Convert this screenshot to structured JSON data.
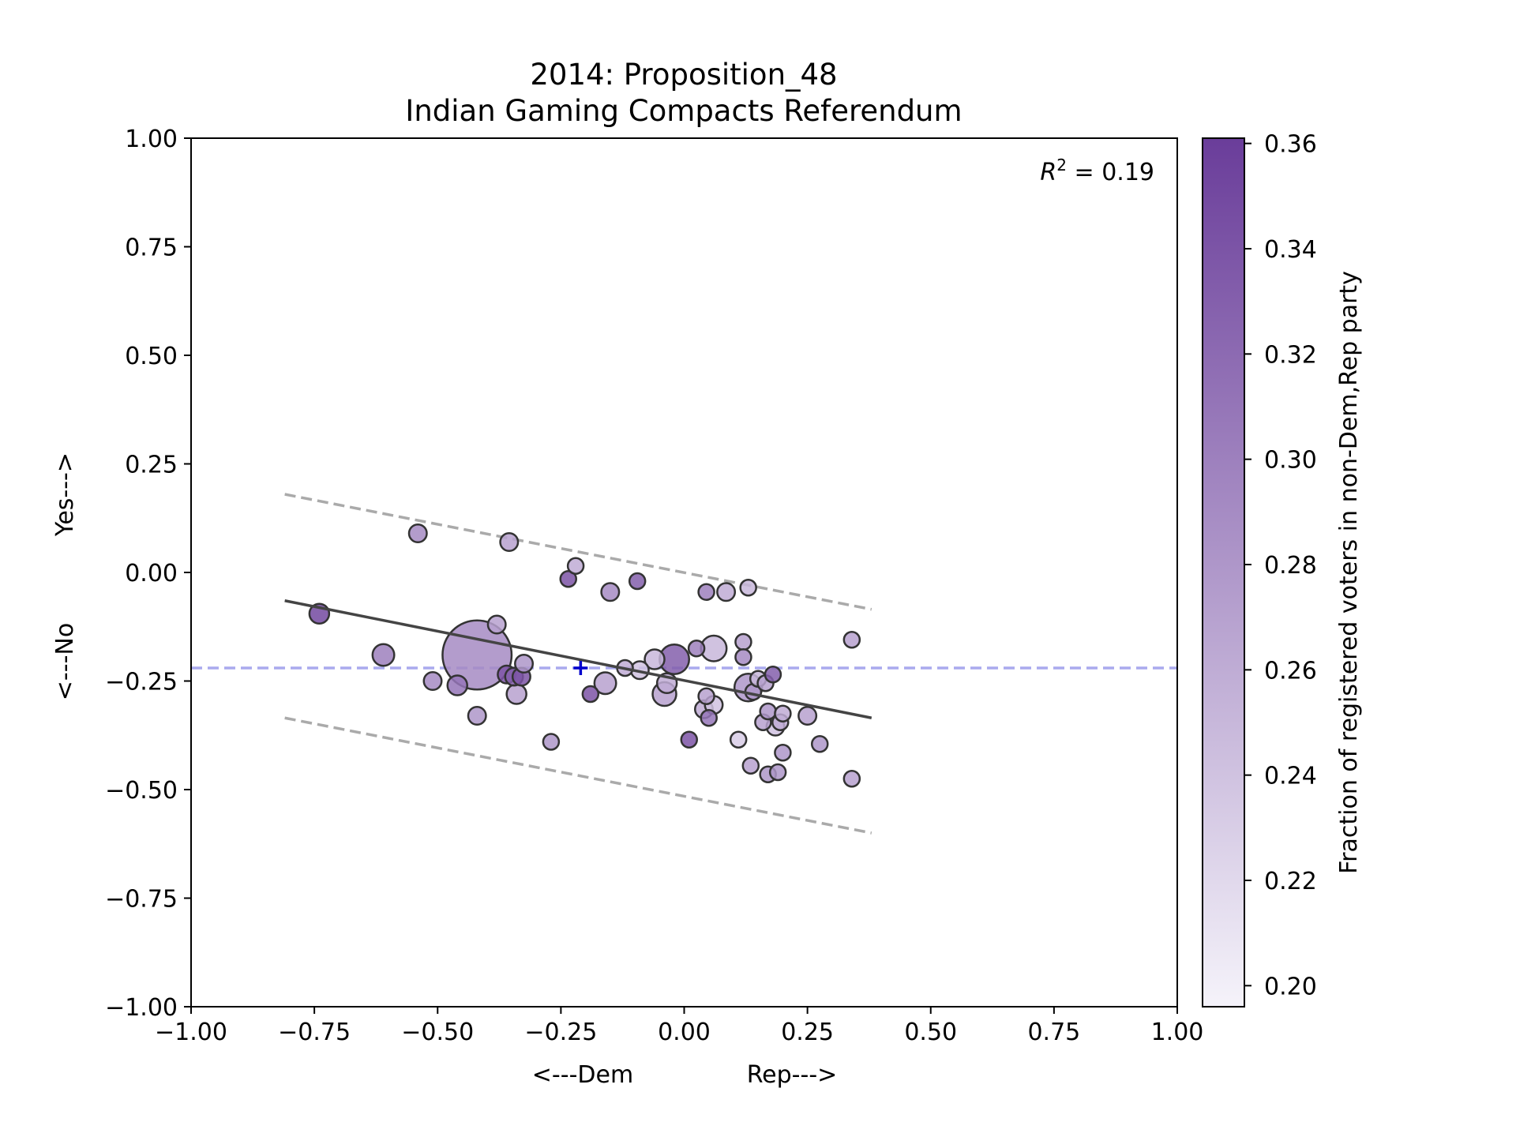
{
  "chart_data": {
    "type": "scatter",
    "title_line1": "2014: Proposition_48",
    "title_line2": "Indian Gaming Compacts Referendum",
    "xlabel_left": "<---Dem",
    "xlabel_right": "Rep--->",
    "ylabel_bottom": "<---No",
    "ylabel_top": "Yes--->",
    "xlim": [
      -1.0,
      1.0
    ],
    "ylim": [
      -1.0,
      1.0
    ],
    "xticks": [
      "−1.00",
      "−0.75",
      "−0.50",
      "−0.25",
      "0.00",
      "0.25",
      "0.50",
      "0.75",
      "1.00"
    ],
    "yticks": [
      "−1.00",
      "−0.75",
      "−0.50",
      "−0.25",
      "0.00",
      "0.25",
      "0.50",
      "0.75",
      "1.00"
    ],
    "annotation": "R² = 0.19",
    "annotation_main": "R",
    "annotation_sup": "2",
    "annotation_rest": " = 0.19",
    "colorbar": {
      "label": "Fraction of registered voters in non-Dem,Rep party",
      "min": 0.196,
      "max": 0.361,
      "ticks": [
        "0.20",
        "0.22",
        "0.24",
        "0.26",
        "0.28",
        "0.30",
        "0.32",
        "0.34",
        "0.36"
      ],
      "color_low": "#f5f3fa",
      "color_high": "#6a3d9a"
    },
    "reference_line": {
      "y": -0.22,
      "color": "#aaaaee",
      "style": "dashed"
    },
    "mean_marker": {
      "x": -0.21,
      "y": -0.22,
      "color": "#0000cc"
    },
    "fit_line": {
      "x": [
        -0.81,
        0.38
      ],
      "y": [
        -0.065,
        -0.335
      ],
      "color": "#444444"
    },
    "upper_band": {
      "x": [
        -0.81,
        0.38
      ],
      "y": [
        0.18,
        -0.085
      ],
      "color": "#aaaaaa",
      "style": "dashed"
    },
    "lower_band": {
      "x": [
        -0.81,
        0.38
      ],
      "y": [
        -0.335,
        -0.6
      ],
      "color": "#aaaaaa",
      "style": "dashed"
    },
    "points": [
      {
        "x": -0.74,
        "y": -0.095,
        "c": 0.35,
        "s": 10
      },
      {
        "x": -0.54,
        "y": 0.09,
        "c": 0.29,
        "s": 9
      },
      {
        "x": -0.355,
        "y": 0.07,
        "c": 0.27,
        "s": 9
      },
      {
        "x": -0.61,
        "y": -0.19,
        "c": 0.3,
        "s": 11
      },
      {
        "x": -0.51,
        "y": -0.25,
        "c": 0.29,
        "s": 9
      },
      {
        "x": -0.46,
        "y": -0.26,
        "c": 0.31,
        "s": 10
      },
      {
        "x": -0.42,
        "y": -0.19,
        "c": 0.29,
        "s": 35
      },
      {
        "x": -0.38,
        "y": -0.12,
        "c": 0.27,
        "s": 9
      },
      {
        "x": -0.42,
        "y": -0.33,
        "c": 0.28,
        "s": 9
      },
      {
        "x": -0.36,
        "y": -0.235,
        "c": 0.34,
        "s": 9
      },
      {
        "x": -0.345,
        "y": -0.24,
        "c": 0.33,
        "s": 9
      },
      {
        "x": -0.33,
        "y": -0.24,
        "c": 0.34,
        "s": 9
      },
      {
        "x": -0.325,
        "y": -0.21,
        "c": 0.28,
        "s": 9
      },
      {
        "x": -0.34,
        "y": -0.28,
        "c": 0.27,
        "s": 10
      },
      {
        "x": -0.27,
        "y": -0.39,
        "c": 0.28,
        "s": 8
      },
      {
        "x": -0.235,
        "y": -0.015,
        "c": 0.34,
        "s": 8
      },
      {
        "x": -0.22,
        "y": 0.015,
        "c": 0.26,
        "s": 8
      },
      {
        "x": -0.19,
        "y": -0.28,
        "c": 0.34,
        "s": 8
      },
      {
        "x": -0.16,
        "y": -0.255,
        "c": 0.27,
        "s": 11
      },
      {
        "x": -0.15,
        "y": -0.045,
        "c": 0.29,
        "s": 9
      },
      {
        "x": -0.12,
        "y": -0.22,
        "c": 0.26,
        "s": 8
      },
      {
        "x": -0.095,
        "y": -0.02,
        "c": 0.33,
        "s": 8
      },
      {
        "x": -0.09,
        "y": -0.225,
        "c": 0.24,
        "s": 9
      },
      {
        "x": -0.06,
        "y": -0.2,
        "c": 0.25,
        "s": 10
      },
      {
        "x": -0.04,
        "y": -0.28,
        "c": 0.27,
        "s": 12
      },
      {
        "x": -0.035,
        "y": -0.255,
        "c": 0.26,
        "s": 10
      },
      {
        "x": -0.02,
        "y": -0.2,
        "c": 0.33,
        "s": 15
      },
      {
        "x": 0.01,
        "y": -0.385,
        "c": 0.34,
        "s": 8
      },
      {
        "x": 0.025,
        "y": -0.175,
        "c": 0.3,
        "s": 8
      },
      {
        "x": 0.045,
        "y": -0.045,
        "c": 0.3,
        "s": 8
      },
      {
        "x": 0.045,
        "y": -0.285,
        "c": 0.27,
        "s": 8
      },
      {
        "x": 0.04,
        "y": -0.315,
        "c": 0.26,
        "s": 9
      },
      {
        "x": 0.05,
        "y": -0.335,
        "c": 0.31,
        "s": 8
      },
      {
        "x": 0.06,
        "y": -0.305,
        "c": 0.24,
        "s": 9
      },
      {
        "x": 0.06,
        "y": -0.175,
        "c": 0.25,
        "s": 13
      },
      {
        "x": 0.085,
        "y": -0.045,
        "c": 0.26,
        "s": 9
      },
      {
        "x": 0.11,
        "y": -0.385,
        "c": 0.23,
        "s": 8
      },
      {
        "x": 0.12,
        "y": -0.16,
        "c": 0.27,
        "s": 8
      },
      {
        "x": 0.12,
        "y": -0.195,
        "c": 0.29,
        "s": 8
      },
      {
        "x": 0.13,
        "y": -0.035,
        "c": 0.25,
        "s": 8
      },
      {
        "x": 0.13,
        "y": -0.265,
        "c": 0.28,
        "s": 14
      },
      {
        "x": 0.135,
        "y": -0.445,
        "c": 0.27,
        "s": 8
      },
      {
        "x": 0.14,
        "y": -0.275,
        "c": 0.28,
        "s": 8
      },
      {
        "x": 0.15,
        "y": -0.245,
        "c": 0.25,
        "s": 8
      },
      {
        "x": 0.165,
        "y": -0.255,
        "c": 0.27,
        "s": 8
      },
      {
        "x": 0.16,
        "y": -0.345,
        "c": 0.27,
        "s": 8
      },
      {
        "x": 0.17,
        "y": -0.32,
        "c": 0.28,
        "s": 8
      },
      {
        "x": 0.17,
        "y": -0.465,
        "c": 0.28,
        "s": 8
      },
      {
        "x": 0.18,
        "y": -0.235,
        "c": 0.33,
        "s": 8
      },
      {
        "x": 0.185,
        "y": -0.355,
        "c": 0.24,
        "s": 9
      },
      {
        "x": 0.19,
        "y": -0.46,
        "c": 0.28,
        "s": 8
      },
      {
        "x": 0.195,
        "y": -0.345,
        "c": 0.26,
        "s": 8
      },
      {
        "x": 0.2,
        "y": -0.325,
        "c": 0.26,
        "s": 8
      },
      {
        "x": 0.2,
        "y": -0.415,
        "c": 0.28,
        "s": 8
      },
      {
        "x": 0.25,
        "y": -0.33,
        "c": 0.27,
        "s": 9
      },
      {
        "x": 0.275,
        "y": -0.395,
        "c": 0.28,
        "s": 8
      },
      {
        "x": 0.34,
        "y": -0.155,
        "c": 0.27,
        "s": 8
      },
      {
        "x": 0.34,
        "y": -0.475,
        "c": 0.27,
        "s": 8
      }
    ]
  }
}
